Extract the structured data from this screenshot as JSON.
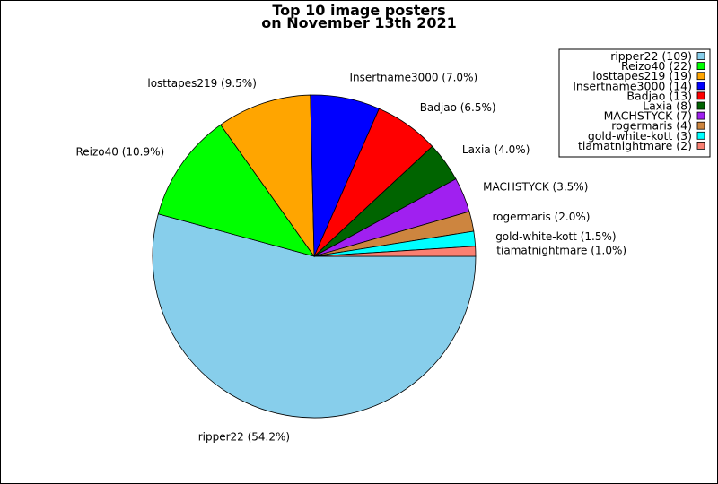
{
  "chart_data": {
    "type": "pie",
    "title_lines": [
      "Top 10 image posters",
      "on November 13th 2021"
    ],
    "legend_position": "top-right",
    "start_angle_deg": 0,
    "direction": "clockwise",
    "slices": [
      {
        "name": "ripper22",
        "value": 109,
        "percent": "54.2%",
        "color": "#87CEEB"
      },
      {
        "name": "Reizo40",
        "value": 22,
        "percent": "10.9%",
        "color": "#00FF00"
      },
      {
        "name": "losttapes219",
        "value": 19,
        "percent": "9.5%",
        "color": "#FFA500"
      },
      {
        "name": "Insertname3000",
        "value": 14,
        "percent": "7.0%",
        "color": "#0000FF"
      },
      {
        "name": "Badjao",
        "value": 13,
        "percent": "6.5%",
        "color": "#FF0000"
      },
      {
        "name": "Laxia",
        "value": 8,
        "percent": "4.0%",
        "color": "#006400"
      },
      {
        "name": "MACHSTYCK",
        "value": 7,
        "percent": "3.5%",
        "color": "#A020F0"
      },
      {
        "name": "rogermaris",
        "value": 4,
        "percent": "2.0%",
        "color": "#CD853F"
      },
      {
        "name": "gold-white-kott",
        "value": 3,
        "percent": "1.5%",
        "color": "#00FFFF"
      },
      {
        "name": "tiamatnightmare",
        "value": 2,
        "percent": "1.0%",
        "color": "#FA8072"
      }
    ]
  }
}
